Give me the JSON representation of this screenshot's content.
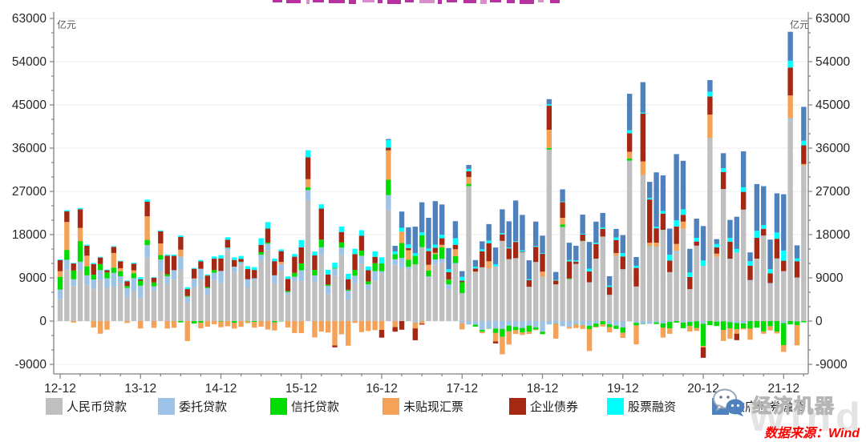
{
  "header": {
    "clipped_title_color": "#B732A0",
    "title_clipped": true
  },
  "axes": {
    "unit_left": "亿元",
    "unit_right": "亿元",
    "y_ticks": [
      63000,
      54000,
      45000,
      36000,
      27000,
      18000,
      9000,
      0,
      -9000
    ],
    "y_minor_step": 3000,
    "x_tick_labels": [
      "12-12",
      "13-12",
      "14-12",
      "15-12",
      "16-12",
      "17-12",
      "18-12",
      "19-12",
      "20-12",
      "21-12"
    ]
  },
  "chart_data": {
    "type": "bar",
    "stacked": true,
    "unit": "亿元",
    "grid": true,
    "legend_position": "bottom",
    "ylim": [
      -11000,
      63000
    ],
    "x_start": "2012-12",
    "x_end": "2022-03",
    "frequency": "monthly",
    "months": [
      "2012-12",
      "2013-01",
      "2013-02",
      "2013-03",
      "2013-04",
      "2013-05",
      "2013-06",
      "2013-07",
      "2013-08",
      "2013-09",
      "2013-10",
      "2013-11",
      "2013-12",
      "2014-01",
      "2014-02",
      "2014-03",
      "2014-04",
      "2014-05",
      "2014-06",
      "2014-07",
      "2014-08",
      "2014-09",
      "2014-10",
      "2014-11",
      "2014-12",
      "2015-01",
      "2015-02",
      "2015-03",
      "2015-04",
      "2015-05",
      "2015-06",
      "2015-07",
      "2015-08",
      "2015-09",
      "2015-10",
      "2015-11",
      "2015-12",
      "2016-01",
      "2016-02",
      "2016-03",
      "2016-04",
      "2016-05",
      "2016-06",
      "2016-07",
      "2016-08",
      "2016-09",
      "2016-10",
      "2016-11",
      "2016-12",
      "2017-01",
      "2017-02",
      "2017-03",
      "2017-04",
      "2017-05",
      "2017-06",
      "2017-07",
      "2017-08",
      "2017-09",
      "2017-10",
      "2017-11",
      "2017-12",
      "2018-01",
      "2018-02",
      "2018-03",
      "2018-04",
      "2018-05",
      "2018-06",
      "2018-07",
      "2018-08",
      "2018-09",
      "2018-10",
      "2018-11",
      "2018-12",
      "2019-01",
      "2019-02",
      "2019-03",
      "2019-04",
      "2019-05",
      "2019-06",
      "2019-07",
      "2019-08",
      "2019-09",
      "2019-10",
      "2019-11",
      "2019-12",
      "2020-01",
      "2020-02",
      "2020-03",
      "2020-04",
      "2020-05",
      "2020-06",
      "2020-07",
      "2020-08",
      "2020-09",
      "2020-10",
      "2020-11",
      "2020-12",
      "2021-01",
      "2021-02",
      "2021-03",
      "2021-04",
      "2021-05",
      "2021-06",
      "2021-07",
      "2021-08",
      "2021-09",
      "2021-10",
      "2021-11",
      "2021-12",
      "2022-01",
      "2022-02",
      "2022-03"
    ],
    "series": [
      {
        "name": "人民币贷款",
        "color": "#BFBFBF",
        "values": [
          4543,
          10700,
          7300,
          10600,
          7600,
          6700,
          8600,
          7000,
          7100,
          7900,
          5060,
          6246,
          4800,
          13200,
          6445,
          10500,
          7740,
          8708,
          10700,
          3852,
          7025,
          8572,
          5483,
          8527,
          7978,
          14700,
          10200,
          11800,
          7079,
          8510,
          12700,
          14800,
          7756,
          10500,
          5574,
          8339,
          8323,
          25100,
          8105,
          13700,
          5642,
          9374,
          13800,
          4550,
          7969,
          12000,
          6513,
          8463,
          9972,
          23100,
          11700,
          11100,
          10800,
          11800,
          15400,
          9152,
          11800,
          12200,
          6635,
          11800,
          5844,
          28100,
          10200,
          11200,
          11000,
          11400,
          16700,
          12900,
          13100,
          14300,
          7141,
          12300,
          9269,
          35700,
          7641,
          19600,
          8733,
          11900,
          16700,
          8086,
          13000,
          17600,
          5470,
          13600,
          10800,
          33400,
          7202,
          30400,
          15700,
          15500,
          19000,
          10200,
          14200,
          19200,
          6663,
          15700,
          11500,
          38000,
          13400,
          27500,
          13000,
          14300,
          23200,
          8391,
          12700,
          17800,
          7752,
          13000,
          10400,
          41800,
          9084,
          32300
        ]
      },
      {
        "name": "委托贷款",
        "color": "#9DC3E6",
        "values": [
          2032,
          2061,
          1411,
          1748,
          1926,
          1967,
          2027,
          1927,
          2938,
          1435,
          1839,
          2704,
          2576,
          2635,
          799,
          2287,
          1576,
          1892,
          2720,
          1219,
          1751,
          2320,
          1377,
          1523,
          2456,
          583,
          1136,
          489,
          1633,
          411,
          1121,
          1300,
          1775,
          1307,
          467,
          905,
          2257,
          2175,
          1379,
          1662,
          1694,
          1566,
          1529,
          1775,
          1469,
          1597,
          1140,
          1955,
          404,
          3136,
          1172,
          2039,
          506,
          -278,
          -33,
          163,
          1023,
          775,
          1009,
          279,
          -396,
          -714,
          -750,
          -1850,
          -1481,
          -1570,
          -1642,
          -950,
          -1207,
          -1435,
          -949,
          -1310,
          -2210,
          -699,
          -508,
          -1070,
          -1197,
          -631,
          -827,
          -987,
          -513,
          -21,
          -667,
          -959,
          -1316,
          -26,
          -356,
          -588,
          -579,
          -273,
          -484,
          -152,
          415,
          -317,
          -174,
          -31,
          -559,
          91,
          -100,
          -41,
          -213,
          -408,
          -473,
          151,
          177,
          -22,
          173,
          35,
          -416,
          428,
          -74,
          106
        ]
      },
      {
        "name": "信托贷款",
        "color": "#00DB00",
        "values": [
          2643,
          2054,
          1816,
          4306,
          1874,
          992,
          1248,
          1193,
          1096,
          1058,
          404,
          1018,
          1020,
          1068,
          784,
          975,
          417,
          -38,
          -270,
          158,
          -515,
          -325,
          200,
          574,
          -102,
          52,
          -331,
          57,
          -46,
          -195,
          526,
          245,
          -264,
          -58,
          212,
          800,
          1435,
          552,
          1175,
          1592,
          270,
          171,
          1031,
          210,
          1209,
          1081,
          605,
          1625,
          1626,
          3175,
          1062,
          3112,
          1473,
          1812,
          2466,
          1232,
          1143,
          2368,
          1026,
          1434,
          2245,
          455,
          -402,
          -357,
          -94,
          -904,
          -1623,
          -1192,
          -688,
          -908,
          -1273,
          -467,
          -509,
          345,
          -37,
          528,
          129,
          -52,
          15,
          -676,
          -658,
          -672,
          -624,
          -673,
          -1092,
          432,
          -540,
          -9,
          23,
          -337,
          -852,
          -1367,
          -316,
          -1159,
          -875,
          -1387,
          -4601,
          -842,
          -936,
          -1791,
          -1328,
          -1295,
          -1047,
          -1571,
          -1362,
          -2129,
          -1061,
          -2190,
          -4580,
          -680,
          -751,
          -259
        ]
      },
      {
        "name": "未贴现汇票",
        "color": "#F4A258",
        "values": [
          1171,
          5812,
          -308,
          2732,
          2209,
          -1335,
          -2632,
          -1783,
          3045,
          615,
          -398,
          600,
          -1544,
          4901,
          -1408,
          2389,
          -1545,
          -1350,
          1443,
          -4160,
          112,
          -1176,
          -1172,
          -649,
          -1181,
          -1076,
          -1220,
          -1208,
          -385,
          -1161,
          -1174,
          -1754,
          -1685,
          522,
          -1318,
          -2480,
          -2510,
          1716,
          -3405,
          -2187,
          -2388,
          -5066,
          -2753,
          -5122,
          -377,
          -2290,
          -2062,
          -1885,
          -1820,
          6131,
          -1250,
          2388,
          1983,
          -1245,
          -487,
          1180,
          243,
          526,
          12,
          1444,
          -1330,
          1437,
          106,
          -323,
          1454,
          -1741,
          -3650,
          -2744,
          -779,
          -548,
          -453,
          -127,
          1023,
          3786,
          -3103,
          1366,
          -357,
          -770,
          -827,
          -4563,
          -157,
          -431,
          -1053,
          571,
          -1092,
          1403,
          -3961,
          2818,
          577,
          836,
          -2104,
          -1130,
          1441,
          1502,
          -1124,
          -626,
          -300,
          4902,
          640,
          -2297,
          -2152,
          -926,
          -220,
          -2316,
          127,
          -488,
          -886,
          -383,
          -1419,
          4731,
          -4228,
          286
        ]
      },
      {
        "name": "企业债券",
        "color": "#A52814",
        "values": [
          2286,
          2201,
          1463,
          3892,
          2073,
          2219,
          1349,
          461,
          1274,
          1425,
          997,
          1383,
          280,
          3043,
          995,
          2519,
          3875,
          2971,
          2634,
          1427,
          2001,
          1534,
          2417,
          2368,
          2608,
          1596,
          1379,
          604,
          2116,
          1726,
          1528,
          2907,
          2943,
          2232,
          2518,
          3358,
          3339,
          4547,
          3004,
          6460,
          2096,
          -397,
          2188,
          2188,
          3306,
          3072,
          2325,
          1334,
          -1629,
          540,
          -954,
          -1792,
          435,
          -2462,
          -217,
          2840,
          1063,
          1370,
          1508,
          928,
          317,
          1194,
          644,
          3340,
          3776,
          -434,
          1349,
          2237,
          3376,
          142,
          1381,
          3163,
          3703,
          4990,
          805,
          3276,
          3574,
          476,
          1291,
          2240,
          3041,
          1611,
          1622,
          2696,
          2625,
          3865,
          3860,
          9953,
          9015,
          2971,
          3383,
          2383,
          3633,
          1422,
          2522,
          862,
          -2183,
          3751,
          1306,
          3535,
          3509,
          -1336,
          3702,
          2998,
          4341,
          1400,
          2030,
          4104,
          2167,
          5799,
          3377,
          3894
        ]
      },
      {
        "name": "股票融资",
        "color": "#00FFFF",
        "values": [
          163,
          244,
          118,
          263,
          232,
          226,
          153,
          116,
          134,
          123,
          152,
          200,
          441,
          437,
          119,
          199,
          246,
          258,
          330,
          378,
          172,
          289,
          228,
          455,
          661,
          526,
          533,
          616,
          599,
          584,
          1353,
          1344,
          533,
          373,
          533,
          568,
          1527,
          1469,
          801,
          891,
          979,
          1073,
          1128,
          1128,
          1082,
          1173,
          785,
          1124,
          1263,
          1599,
          575,
          773,
          767,
          507,
          591,
          537,
          645,
          734,
          601,
          1350,
          800,
          500,
          379,
          404,
          533,
          438,
          257,
          175,
          141,
          272,
          176,
          200,
          131,
          293,
          119,
          122,
          262,
          259,
          153,
          593,
          256,
          289,
          324,
          524,
          733,
          609,
          449,
          197,
          315,
          353,
          537,
          1215,
          1282,
          1140,
          927,
          771,
          1125,
          991,
          693,
          783,
          814,
          717,
          957,
          938,
          1443,
          772,
          846,
          1294,
          2118,
          1439,
          585,
          958
        ]
      },
      {
        "name": "政府债券融资",
        "color": "#4F81BD",
        "values": [
          0,
          0,
          0,
          0,
          0,
          0,
          0,
          0,
          0,
          0,
          0,
          0,
          0,
          0,
          0,
          0,
          0,
          0,
          0,
          0,
          0,
          0,
          0,
          0,
          0,
          0,
          0,
          0,
          0,
          0,
          0,
          0,
          0,
          0,
          0,
          0,
          0,
          0,
          0,
          0,
          0,
          0,
          0,
          0,
          0,
          0,
          0,
          0,
          0,
          213,
          1159,
          3389,
          3573,
          5550,
          6269,
          6403,
          9057,
          6304,
          4418,
          3560,
          1201,
          805,
          1367,
          1662,
          3432,
          3476,
          4959,
          5453,
          8485,
          7389,
          3951,
          5052,
          3657,
          1088,
          1667,
          2532,
          3618,
          3043,
          3999,
          5559,
          4401,
          3027,
          1931,
          1800,
          3738,
          7613,
          1824,
          6363,
          3357,
          11300,
          7400,
          5459,
          13788,
          10103,
          4931,
          4000,
          7156,
          2437,
          1017,
          3130,
          3739,
          6701,
          7475,
          1820,
          9738,
          8109,
          6167,
          8158,
          11718,
          6026,
          2722,
          7052
        ]
      }
    ]
  },
  "footer": {
    "source_text": "数据来源：Wind",
    "source_color": "#FF0000",
    "watermark_brand": "经济机器",
    "watermark_wind": "Wind"
  }
}
